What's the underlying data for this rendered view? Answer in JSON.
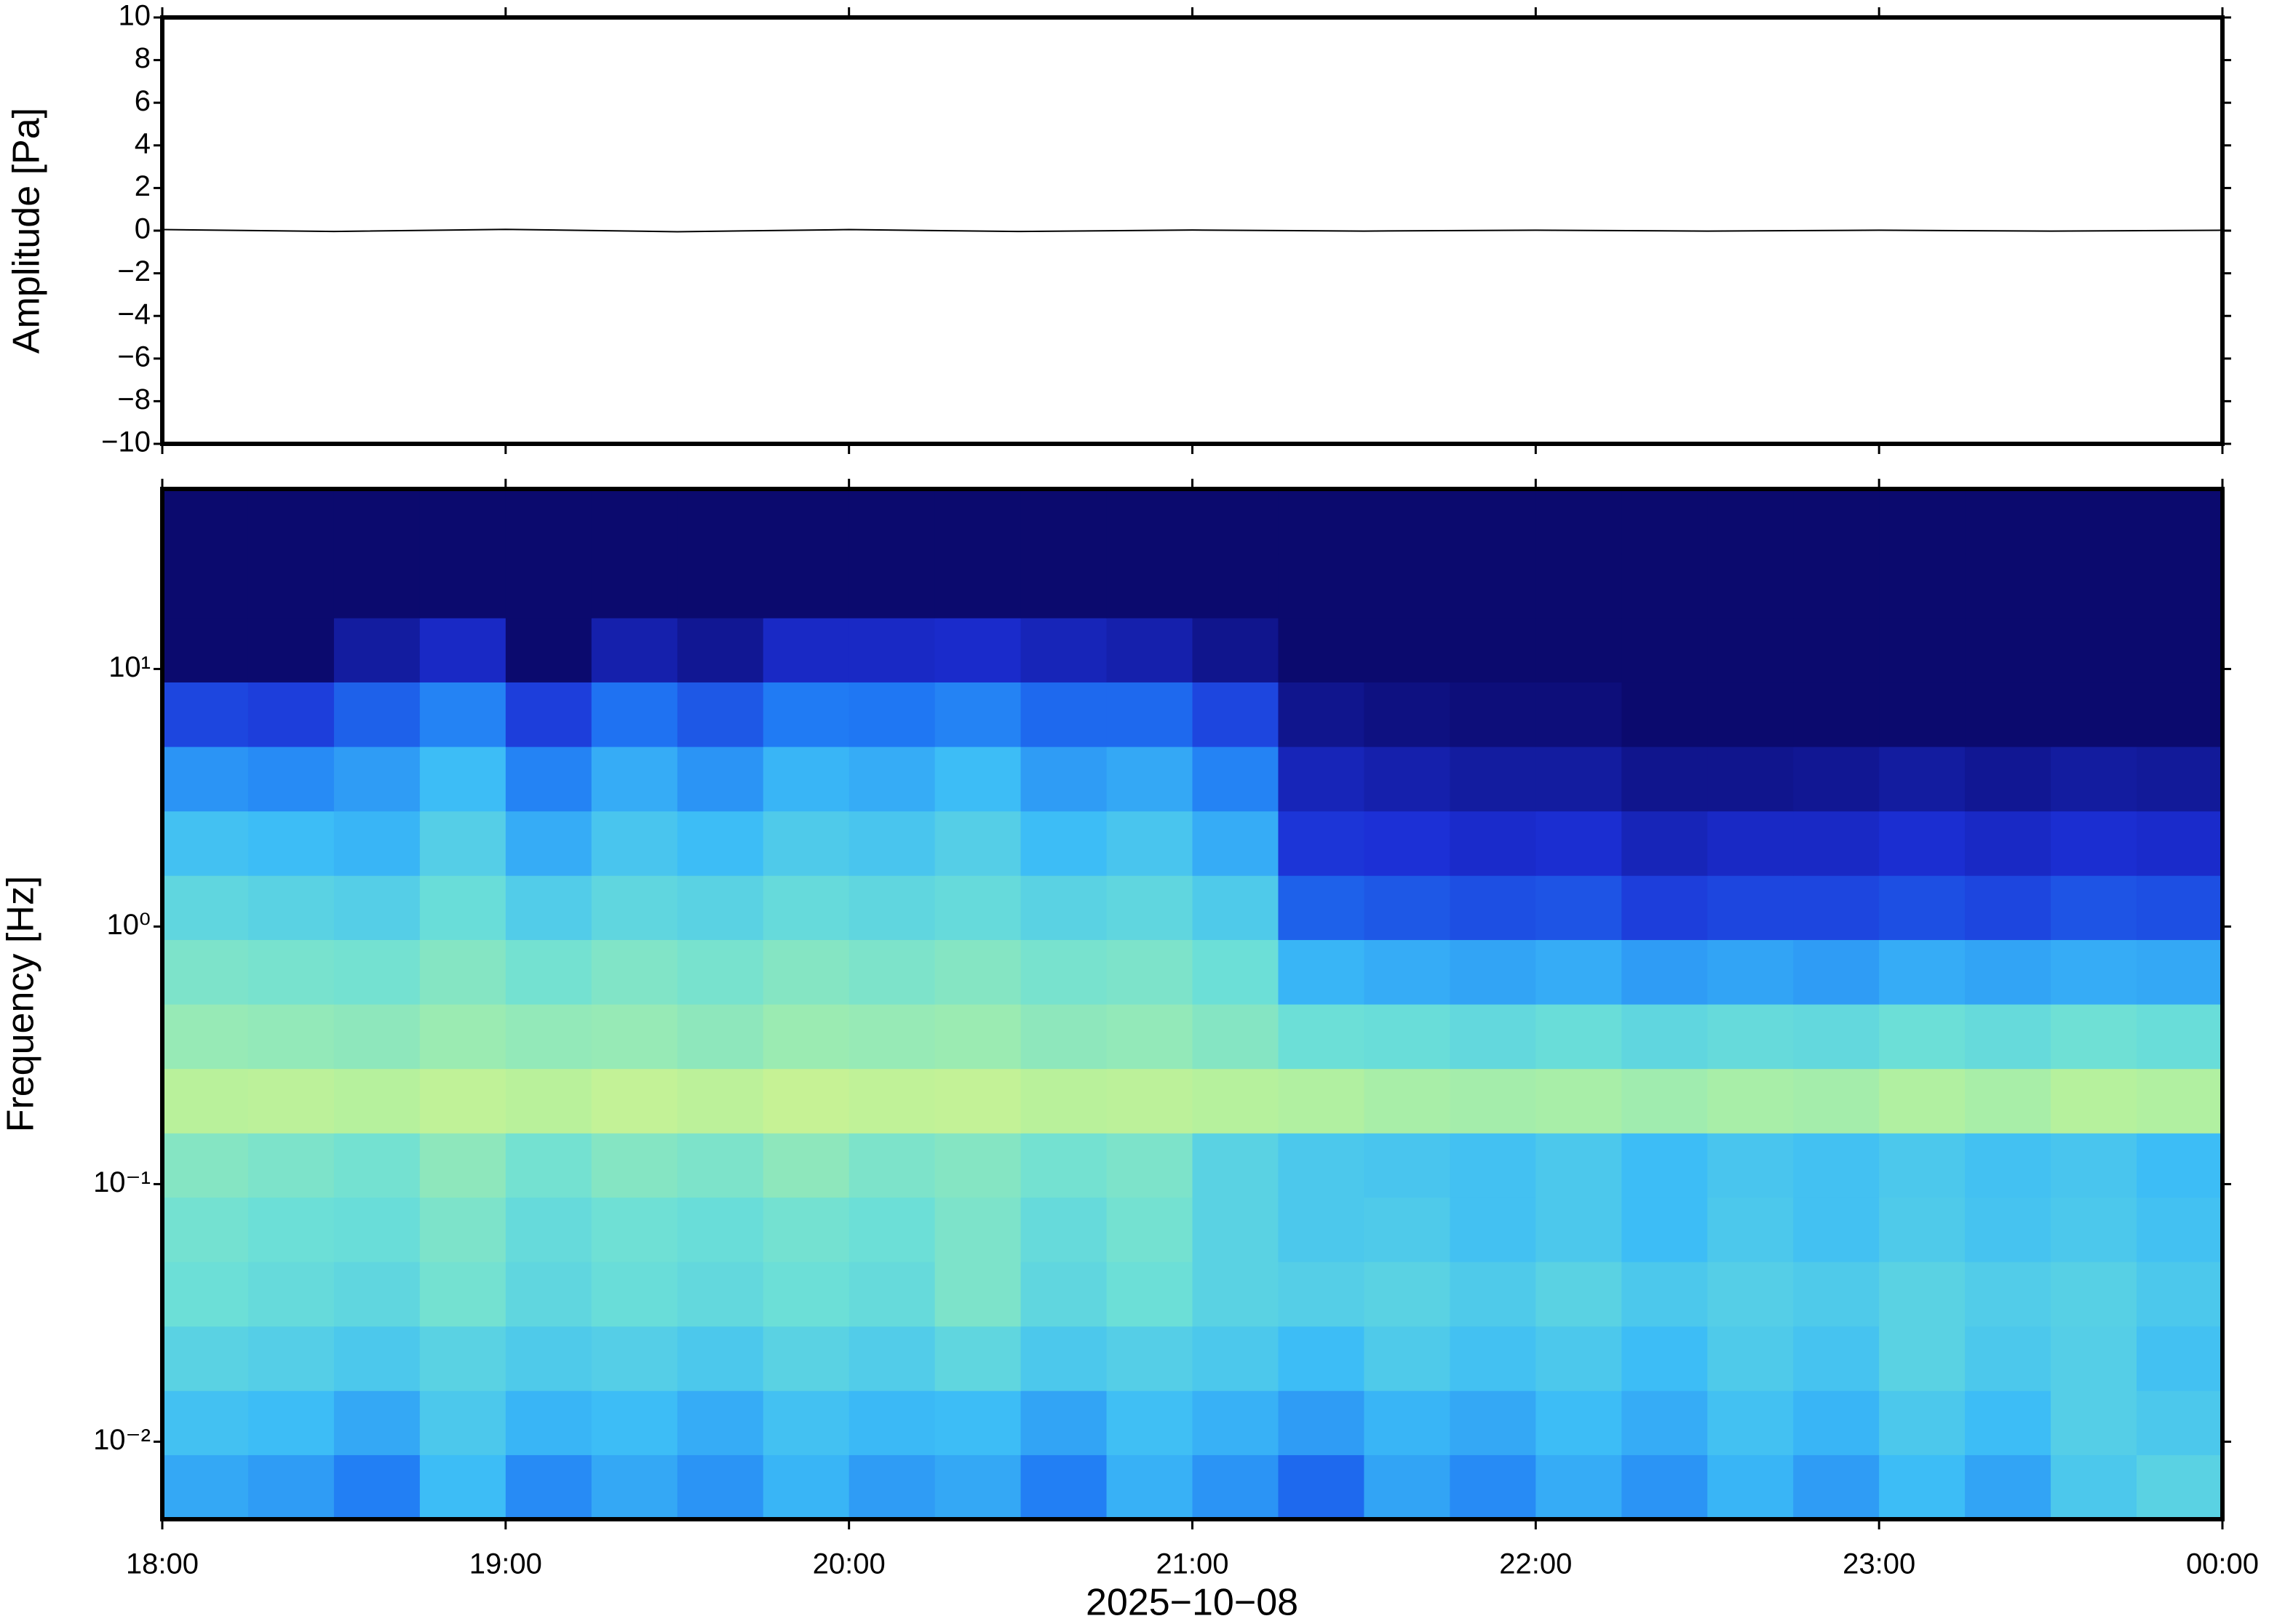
{
  "chart_data": [
    {
      "type": "line",
      "ylabel": "Amplitude [Pa]",
      "x": [
        18,
        18.5,
        19,
        19.5,
        20,
        20.5,
        21,
        21.5,
        22,
        22.5,
        23,
        23.5,
        24
      ],
      "values": [
        0.05,
        -0.04,
        0.06,
        -0.05,
        0.05,
        -0.04,
        0.03,
        -0.02,
        0.02,
        -0.02,
        0.02,
        -0.02,
        0.02
      ],
      "color": "#000000",
      "xlim": [
        18,
        24
      ],
      "ylim": [
        -10,
        10
      ],
      "yticks": [
        10,
        8,
        6,
        4,
        2,
        0,
        {
          "value": -2,
          "label": "−2"
        },
        {
          "value": -4,
          "label": "−4"
        },
        {
          "value": -6,
          "label": "−6"
        },
        {
          "value": -8,
          "label": "−8"
        },
        {
          "value": -10,
          "label": "−10"
        }
      ]
    },
    {
      "type": "heatmap",
      "ylabel": "Frequency [Hz]",
      "xlabel": "2025−10−08",
      "log_y": true,
      "xlim": [
        18,
        24
      ],
      "ylim": [
        0.005,
        50
      ],
      "xticks": [
        {
          "value": 18,
          "label": "18:00"
        },
        {
          "value": 19,
          "label": "19:00"
        },
        {
          "value": 20,
          "label": "20:00"
        },
        {
          "value": 21,
          "label": "21:00"
        },
        {
          "value": 22,
          "label": "22:00"
        },
        {
          "value": 23,
          "label": "23:00"
        },
        {
          "value": 24,
          "label": "00:00"
        }
      ],
      "yticks": [
        {
          "value": 10,
          "label": "10¹"
        },
        {
          "value": 1,
          "label": "10⁰"
        },
        {
          "value": 0.1,
          "label": "10⁻¹"
        },
        {
          "value": 0.01,
          "label": "10⁻²"
        }
      ],
      "zlim": [
        0,
        1
      ],
      "colormap": [
        "#0b0a6e",
        "#1c2fd5",
        "#1f78f4",
        "#3dbdf6",
        "#6ee0d6",
        "#b7f19c",
        "#eef583"
      ],
      "x_edges": [
        18,
        18.25,
        18.5,
        18.75,
        19,
        19.25,
        19.5,
        19.75,
        20,
        20.25,
        20.5,
        20.75,
        21,
        21.25,
        21.5,
        21.75,
        22,
        22.25,
        22.5,
        22.75,
        23,
        23.25,
        23.5,
        23.75,
        24
      ],
      "y_edges": [
        0.005,
        0.0089,
        0.0158,
        0.0281,
        0.05,
        0.089,
        0.158,
        0.281,
        0.5,
        0.89,
        1.58,
        2.81,
        5,
        8.9,
        15.8,
        28.1,
        50
      ],
      "values": [
        [
          0.45,
          0.42,
          0.35,
          0.5,
          0.38,
          0.45,
          0.4,
          0.48,
          0.42,
          0.45,
          0.35,
          0.47,
          0.4,
          0.3,
          0.44,
          0.38,
          0.46,
          0.4,
          0.48,
          0.42,
          0.5,
          0.44,
          0.55,
          0.6
        ],
        [
          0.52,
          0.5,
          0.45,
          0.55,
          0.48,
          0.5,
          0.46,
          0.52,
          0.49,
          0.5,
          0.44,
          0.51,
          0.47,
          0.42,
          0.48,
          0.45,
          0.5,
          0.46,
          0.52,
          0.48,
          0.55,
          0.5,
          0.58,
          0.55
        ],
        [
          0.6,
          0.58,
          0.55,
          0.6,
          0.56,
          0.58,
          0.55,
          0.6,
          0.57,
          0.62,
          0.55,
          0.58,
          0.55,
          0.5,
          0.56,
          0.52,
          0.55,
          0.5,
          0.56,
          0.53,
          0.6,
          0.55,
          0.58,
          0.52
        ],
        [
          0.66,
          0.64,
          0.62,
          0.68,
          0.62,
          0.65,
          0.63,
          0.66,
          0.64,
          0.7,
          0.62,
          0.66,
          0.6,
          0.58,
          0.6,
          0.56,
          0.6,
          0.55,
          0.58,
          0.56,
          0.6,
          0.57,
          0.59,
          0.55
        ],
        [
          0.68,
          0.66,
          0.65,
          0.7,
          0.64,
          0.67,
          0.65,
          0.68,
          0.66,
          0.7,
          0.64,
          0.68,
          0.6,
          0.55,
          0.56,
          0.52,
          0.55,
          0.5,
          0.55,
          0.52,
          0.56,
          0.53,
          0.55,
          0.52
        ],
        [
          0.72,
          0.7,
          0.68,
          0.74,
          0.68,
          0.72,
          0.7,
          0.74,
          0.7,
          0.72,
          0.68,
          0.7,
          0.6,
          0.55,
          0.54,
          0.52,
          0.55,
          0.5,
          0.54,
          0.52,
          0.55,
          0.52,
          0.54,
          0.5
        ],
        [
          0.84,
          0.85,
          0.83,
          0.86,
          0.84,
          0.87,
          0.85,
          0.88,
          0.86,
          0.87,
          0.84,
          0.85,
          0.83,
          0.82,
          0.8,
          0.79,
          0.8,
          0.78,
          0.8,
          0.79,
          0.82,
          0.8,
          0.83,
          0.82
        ],
        [
          0.76,
          0.75,
          0.74,
          0.77,
          0.75,
          0.76,
          0.74,
          0.77,
          0.76,
          0.77,
          0.74,
          0.75,
          0.72,
          0.66,
          0.65,
          0.63,
          0.65,
          0.62,
          0.64,
          0.63,
          0.66,
          0.64,
          0.67,
          0.65
        ],
        [
          0.7,
          0.69,
          0.68,
          0.72,
          0.68,
          0.71,
          0.69,
          0.72,
          0.7,
          0.72,
          0.69,
          0.7,
          0.66,
          0.48,
          0.46,
          0.44,
          0.46,
          0.42,
          0.44,
          0.42,
          0.46,
          0.44,
          0.46,
          0.45
        ],
        [
          0.62,
          0.6,
          0.58,
          0.65,
          0.57,
          0.62,
          0.6,
          0.64,
          0.62,
          0.64,
          0.6,
          0.62,
          0.56,
          0.28,
          0.26,
          0.24,
          0.25,
          0.2,
          0.22,
          0.22,
          0.24,
          0.22,
          0.25,
          0.24
        ],
        [
          0.52,
          0.5,
          0.48,
          0.58,
          0.46,
          0.54,
          0.5,
          0.56,
          0.54,
          0.58,
          0.5,
          0.54,
          0.46,
          0.18,
          0.17,
          0.15,
          0.16,
          0.12,
          0.14,
          0.14,
          0.16,
          0.14,
          0.16,
          0.15
        ],
        [
          0.4,
          0.38,
          0.42,
          0.5,
          0.36,
          0.46,
          0.4,
          0.48,
          0.46,
          0.5,
          0.42,
          0.45,
          0.36,
          0.12,
          0.1,
          0.08,
          0.08,
          0.05,
          0.05,
          0.06,
          0.08,
          0.06,
          0.08,
          0.07
        ],
        [
          0.22,
          0.2,
          0.28,
          0.36,
          0.2,
          0.32,
          0.26,
          0.34,
          0.33,
          0.36,
          0.3,
          0.3,
          0.22,
          0.05,
          0.03,
          0.02,
          0.02,
          0,
          0,
          0,
          0,
          0,
          0,
          0
        ],
        [
          0,
          0,
          0.08,
          0.14,
          0,
          0.1,
          0.06,
          0.14,
          0.14,
          0.15,
          0.12,
          0.1,
          0.05,
          0,
          0,
          0,
          0,
          0,
          0,
          0,
          0,
          0,
          0,
          0
        ],
        [
          0,
          0,
          0,
          0,
          0,
          0,
          0,
          0,
          0,
          0,
          0,
          0,
          0,
          0,
          0,
          0,
          0,
          0,
          0,
          0,
          0,
          0,
          0,
          0
        ],
        [
          0,
          0,
          0,
          0,
          0,
          0,
          0,
          0,
          0,
          0,
          0,
          0,
          0,
          0,
          0,
          0,
          0,
          0,
          0,
          0,
          0,
          0,
          0,
          0
        ]
      ]
    }
  ]
}
